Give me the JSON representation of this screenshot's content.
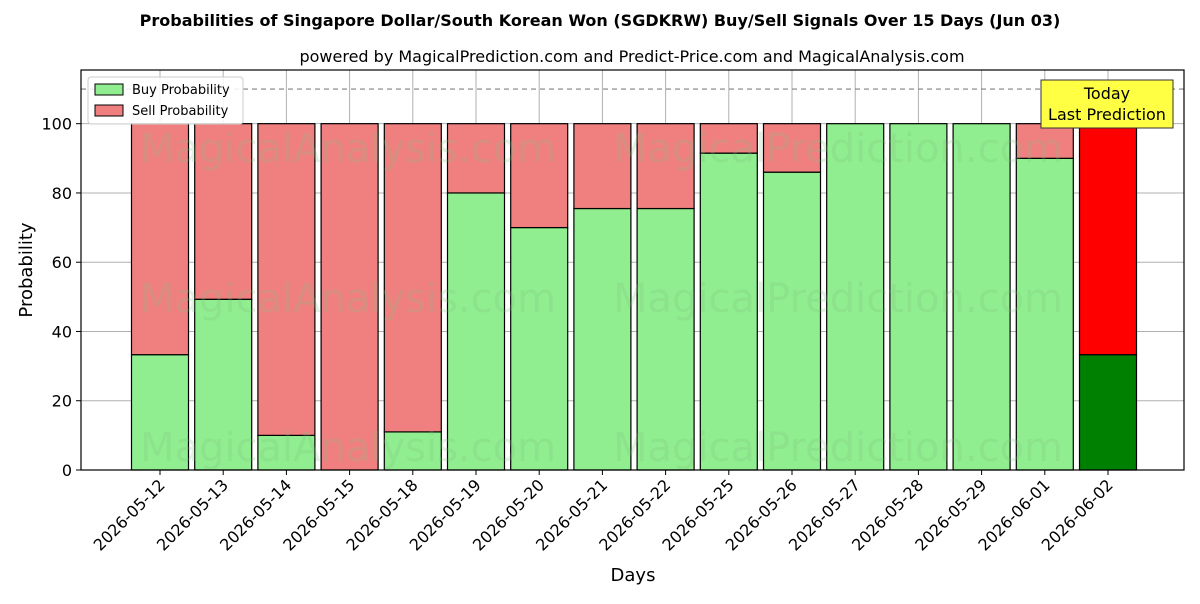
{
  "chart_data": {
    "type": "bar",
    "title": "Probabilities of Singapore Dollar/South Korean Won (SGDKRW) Buy/Sell Signals Over 15 Days (Jun 03)",
    "subtitle": "powered by MagicalPrediction.com and Predict-Price.com and MagicalAnalysis.com",
    "xlabel": "Days",
    "ylabel": "Probability",
    "ylim": [
      0,
      115.5
    ],
    "yticks": [
      "0",
      "20",
      "40",
      "60",
      "80",
      "100"
    ],
    "reference_line": 110,
    "grid": true,
    "stacked": true,
    "legend_position": "top-left",
    "categories": [
      "2026-05-12",
      "2026-05-13",
      "2026-05-14",
      "2026-05-15",
      "2026-05-18",
      "2026-05-19",
      "2026-05-20",
      "2026-05-21",
      "2026-05-22",
      "2026-05-25",
      "2026-05-26",
      "2026-05-27",
      "2026-05-28",
      "2026-05-29",
      "2026-06-01",
      "2026-06-02"
    ],
    "series": [
      {
        "name": "Buy Probability",
        "color": "#90ee90",
        "values": [
          33.3,
          49.3,
          10.0,
          0.0,
          11.0,
          80.0,
          70.0,
          75.5,
          75.5,
          91.5,
          86.0,
          100.0,
          100.0,
          100.0,
          90.0,
          33.3
        ]
      },
      {
        "name": "Sell Probability",
        "color": "#f08080",
        "values": [
          66.7,
          50.7,
          90.0,
          100.0,
          89.0,
          20.0,
          30.0,
          24.5,
          24.5,
          8.5,
          14.0,
          0.0,
          0.0,
          0.0,
          10.0,
          66.7
        ]
      }
    ],
    "highlight": {
      "index": 15,
      "buy_color": "#008000",
      "sell_color": "#ff0000"
    },
    "annotation": {
      "line1": "Today",
      "line2": "Last Prediction",
      "color": "#ffff44"
    },
    "watermarks": [
      "MagicalAnalysis.com",
      "MagicalPrediction.com"
    ]
  }
}
